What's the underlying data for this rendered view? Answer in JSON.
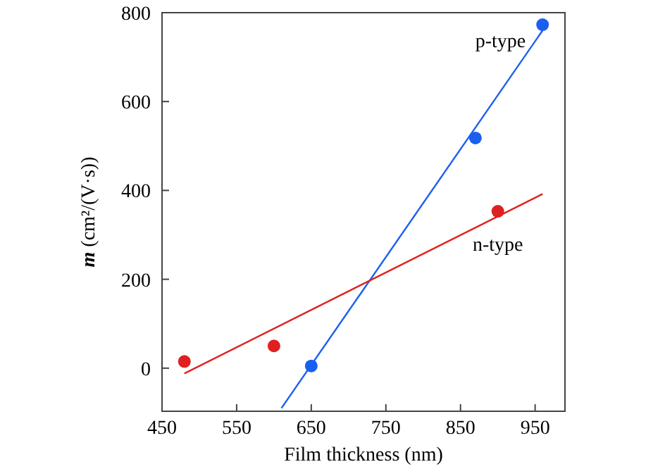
{
  "chart_data": {
    "type": "scatter",
    "xlabel": "Film thickness (nm)",
    "ylabel": "m (cm²/(V·s))",
    "xlim": [
      450,
      990
    ],
    "xticks": [
      450,
      550,
      650,
      750,
      850,
      950
    ],
    "ylim": [
      -97,
      800
    ],
    "yticks": [
      0,
      200,
      400,
      600,
      800
    ],
    "grid": false,
    "series": [
      {
        "name": "p-type",
        "color": "#1a5ff0",
        "marker": "circle",
        "x": [
          650,
          870,
          960
        ],
        "values": [
          5,
          518,
          773
        ]
      },
      {
        "name": "n-type",
        "color": "#e02020",
        "marker": "circle",
        "x": [
          480,
          600,
          900
        ],
        "values": [
          15,
          50,
          353
        ]
      },
      {
        "type": "line",
        "color": "#1a5ff0",
        "x": [
          610,
          960
        ],
        "values": [
          -90,
          760
        ]
      },
      {
        "type": "line",
        "color": "#e02020",
        "x": [
          480,
          960
        ],
        "values": [
          -12,
          392
        ]
      }
    ]
  }
}
